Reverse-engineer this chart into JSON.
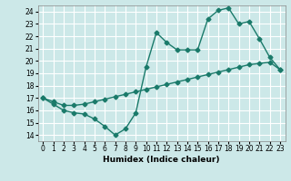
{
  "xlabel": "Humidex (Indice chaleur)",
  "ylabel": "",
  "xlim": [
    -0.5,
    23.5
  ],
  "ylim": [
    13.5,
    24.5
  ],
  "xticks": [
    0,
    1,
    2,
    3,
    4,
    5,
    6,
    7,
    8,
    9,
    10,
    11,
    12,
    13,
    14,
    15,
    16,
    17,
    18,
    19,
    20,
    21,
    22,
    23
  ],
  "yticks": [
    14,
    15,
    16,
    17,
    18,
    19,
    20,
    21,
    22,
    23,
    24
  ],
  "line_color": "#1a7a6a",
  "bg_color": "#cce8e8",
  "grid_color": "#ffffff",
  "line1_x": [
    0,
    1,
    2,
    3,
    4,
    5,
    6,
    7,
    8,
    9,
    10,
    11,
    12,
    13,
    14,
    15,
    16,
    17,
    18,
    19,
    20,
    21,
    22,
    23
  ],
  "line1_y": [
    17.0,
    16.5,
    16.0,
    15.8,
    15.7,
    15.3,
    14.7,
    14.0,
    14.5,
    15.8,
    19.5,
    22.3,
    21.5,
    20.9,
    20.9,
    20.9,
    23.4,
    24.1,
    24.3,
    23.0,
    23.2,
    21.8,
    20.3,
    19.3
  ],
  "line2_x": [
    0,
    1,
    2,
    3,
    4,
    5,
    6,
    7,
    8,
    9,
    10,
    11,
    12,
    13,
    14,
    15,
    16,
    17,
    18,
    19,
    20,
    21,
    22,
    23
  ],
  "line2_y": [
    17.0,
    16.7,
    16.4,
    16.4,
    16.5,
    16.7,
    16.9,
    17.1,
    17.3,
    17.5,
    17.7,
    17.9,
    18.1,
    18.3,
    18.5,
    18.7,
    18.9,
    19.1,
    19.3,
    19.5,
    19.7,
    19.8,
    19.9,
    19.3
  ],
  "marker": "D",
  "markersize": 2.5,
  "linewidth": 1.0,
  "label_fontsize": 6.5,
  "tick_fontsize": 5.5
}
